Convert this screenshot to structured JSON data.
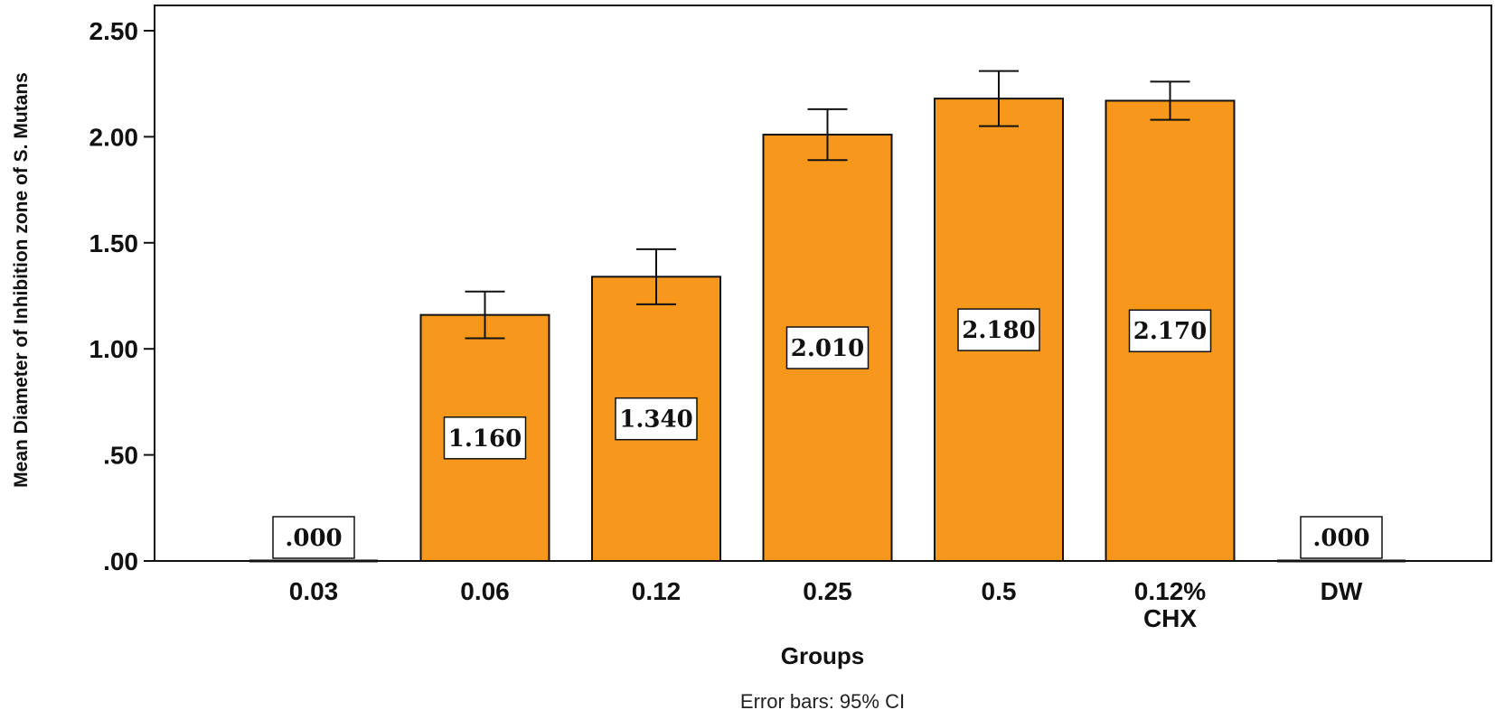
{
  "chart_data": {
    "type": "bar",
    "categories": [
      "0.03",
      "0.06",
      "0.12",
      "0.25",
      "0.5",
      "0.12%\nCHX",
      "DW"
    ],
    "values": [
      0.0,
      1.16,
      1.34,
      2.01,
      2.18,
      2.17,
      0.0
    ],
    "data_labels": [
      ".000",
      "1.160",
      "1.340",
      "2.010",
      "2.180",
      "2.170",
      ".000"
    ],
    "error_low": [
      0.0,
      1.05,
      1.21,
      1.89,
      2.05,
      2.08,
      0.0
    ],
    "error_high": [
      0.0,
      1.27,
      1.47,
      2.13,
      2.31,
      2.26,
      0.0
    ],
    "error_bars_note": "Error bars: 95% CI",
    "xlabel": "Groups",
    "ylabel": "Mean Diameter of Inhibition zone of S. Mutans",
    "ylim": [
      0,
      2.6
    ],
    "yticks": [
      0,
      0.5,
      1.0,
      1.5,
      2.0,
      2.5
    ],
    "ytick_labels": [
      ".00",
      ".50",
      "1.00",
      "1.50",
      "2.00",
      "2.50"
    ],
    "grid": false,
    "bar_color": "#f7981d",
    "bar_edge_color": "#111111"
  }
}
